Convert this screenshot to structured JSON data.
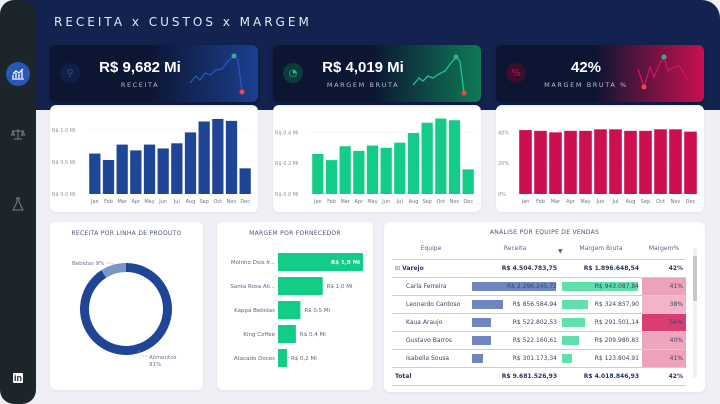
{
  "header": {
    "title": "RECEITA x CUSTOS x MARGEM"
  },
  "sidebar": {
    "items": [
      {
        "icon": "chart-growth-icon",
        "active": true
      },
      {
        "icon": "scale-balance-icon"
      },
      {
        "icon": "flask-icon"
      },
      {
        "icon": "linkedin-icon",
        "label": "in"
      }
    ]
  },
  "kpis": [
    {
      "value": "R$ 9,682 Mi",
      "label": "RECEITA",
      "icon": "money-bag-icon",
      "color": "#2a56b8"
    },
    {
      "value": "R$ 4,019 Mi",
      "label": "MARGEM BRUTA",
      "icon": "pie-chart-icon",
      "color": "#17c98a"
    },
    {
      "value": "42%",
      "label": "MARGEM BRUTA %",
      "icon": "percent-icon",
      "color": "#d0145a"
    }
  ],
  "chart_data": [
    {
      "type": "bar",
      "title": "",
      "categories": [
        "Jan",
        "Feb",
        "Mar",
        "Apr",
        "May",
        "Jun",
        "Jul",
        "Aug",
        "Sep",
        "Oct",
        "Nov",
        "Dec"
      ],
      "values": [
        0.63,
        0.53,
        0.77,
        0.68,
        0.77,
        0.71,
        0.79,
        0.96,
        1.13,
        1.17,
        1.14,
        0.4
      ],
      "ylim": [
        0,
        1.2
      ],
      "yticks": [
        "R$ 0.0 Mi",
        "R$ 0.5 Mi",
        "R$ 1.0 Mi"
      ],
      "ytick_values": [
        0,
        0.5,
        1.0
      ],
      "color": "#1f4597"
    },
    {
      "type": "bar",
      "title": "",
      "categories": [
        "Jan",
        "Feb",
        "Mar",
        "Apr",
        "May",
        "Jun",
        "Jul",
        "Aug",
        "Sep",
        "Oct",
        "Nov",
        "Dec"
      ],
      "values": [
        0.26,
        0.22,
        0.31,
        0.28,
        0.315,
        0.3,
        0.333,
        0.396,
        0.463,
        0.49,
        0.479,
        0.16
      ],
      "ylim": [
        0,
        0.5
      ],
      "yticks": [
        "R$ 0.0 Mi",
        "R$ 0.2 Mi",
        "R$ 0.4 Mi"
      ],
      "ytick_values": [
        0,
        0.2,
        0.4
      ],
      "color": "#13cc88"
    },
    {
      "type": "bar",
      "title": "",
      "categories": [
        "Jan",
        "Feb",
        "Mar",
        "Apr",
        "May",
        "Jun",
        "Jul",
        "Aug",
        "Sep",
        "Oct",
        "Nov",
        "Dec"
      ],
      "values": [
        41.5,
        41,
        40,
        41,
        41,
        42,
        42,
        41,
        41,
        42,
        42,
        40.5
      ],
      "ylim": [
        0,
        50
      ],
      "yticks": [
        "0%",
        "20%",
        "40%"
      ],
      "ytick_values": [
        0,
        20,
        40
      ],
      "color": "#cc0f50"
    },
    {
      "type": "pie",
      "title": "RECEITA POR LINHA DE PRODUTO",
      "slices": [
        {
          "label": "Alimentos",
          "pct_label": "91%",
          "value": 91,
          "color": "#1f4597"
        },
        {
          "label": "Bebidas",
          "pct_label": "9%",
          "value": 9,
          "color": "#7b95c9"
        }
      ]
    },
    {
      "type": "bar",
      "orientation": "horizontal",
      "title": "MARGEM POR FORNECEDOR",
      "categories": [
        "Moinho Dois Ir...",
        "Santa Rosa Ali...",
        "Kappa Bebidas",
        "King Coffee",
        "Atacado Doces"
      ],
      "values": [
        1.9,
        1.0,
        0.5,
        0.4,
        0.2
      ],
      "labels": [
        "R$ 1,9 Mi",
        "R$ 1,0 Mi",
        "R$ 0,5 Mi",
        "R$ 0,4 Mi",
        "R$ 0,2 Mi"
      ],
      "color": "#13cc88"
    }
  ],
  "table": {
    "title": "ANÁLISE POR EQUIPE DE VENDAS",
    "headers": [
      "Equipe",
      "Receita",
      "Margem Bruta",
      "Margem%"
    ],
    "group": {
      "name": "Varejo",
      "receita": "R$ 4.504.783,75",
      "margem": "R$ 1.896.648,54",
      "pct": "42%"
    },
    "rows": [
      {
        "name": "Carla Ferreira",
        "receita": "R$ 2.296.245,72",
        "margem": "R$ 943.087,84",
        "pct": "41%",
        "r": 2296245,
        "m": 943087,
        "p": 41
      },
      {
        "name": "Leonardo Cardoso",
        "receita": "R$ 856.584,94",
        "margem": "R$ 324.857,90",
        "pct": "38%",
        "r": 856584,
        "m": 324857,
        "p": 38
      },
      {
        "name": "Kaua Araujo",
        "receita": "R$ 522.802,53",
        "margem": "R$ 291.501,14",
        "pct": "56%",
        "r": 522802,
        "m": 291501,
        "p": 56
      },
      {
        "name": "Gustavo Barros",
        "receita": "R$ 522.160,61",
        "margem": "R$ 209.980,83",
        "pct": "40%",
        "r": 522160,
        "m": 209980,
        "p": 40
      },
      {
        "name": "Isabella Sousa",
        "receita": "R$ 301.173,34",
        "margem": "R$ 123.804,91",
        "pct": "41%",
        "r": 301173,
        "m": 123804,
        "p": 41
      }
    ],
    "total": {
      "name": "Total",
      "receita": "R$ 9.681.526,93",
      "margem": "R$ 4.018.846,93",
      "pct": "42%"
    },
    "sort_icon": "sort-desc-icon"
  }
}
